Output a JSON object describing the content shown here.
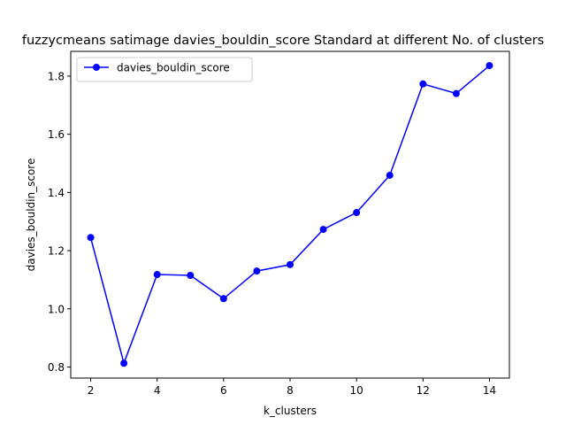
{
  "chart_data": {
    "type": "line",
    "title": "fuzzycmeans satimage davies_bouldin_score Standard at different No. of clusters",
    "xlabel": "k_clusters",
    "ylabel": "davies_bouldin_score",
    "xlim": [
      1.4,
      14.6
    ],
    "ylim": [
      0.762,
      1.885
    ],
    "xticks": [
      2,
      4,
      6,
      8,
      10,
      12,
      14
    ],
    "yticks": [
      0.8,
      1.0,
      1.2,
      1.4,
      1.6,
      1.8
    ],
    "xtick_labels": [
      "2",
      "4",
      "6",
      "8",
      "10",
      "12",
      "14"
    ],
    "ytick_labels": [
      "0.8",
      "1.0",
      "1.2",
      "1.4",
      "1.6",
      "1.8"
    ],
    "grid": false,
    "legend_position": "upper-left",
    "series": [
      {
        "name": "davies_bouldin_score",
        "color": "#0000ff",
        "marker": "circle",
        "x": [
          2,
          3,
          4,
          5,
          6,
          7,
          8,
          9,
          10,
          11,
          12,
          13,
          14
        ],
        "y": [
          1.245,
          0.813,
          1.118,
          1.115,
          1.035,
          1.13,
          1.152,
          1.273,
          1.331,
          1.459,
          1.773,
          1.74,
          1.836
        ]
      }
    ]
  }
}
